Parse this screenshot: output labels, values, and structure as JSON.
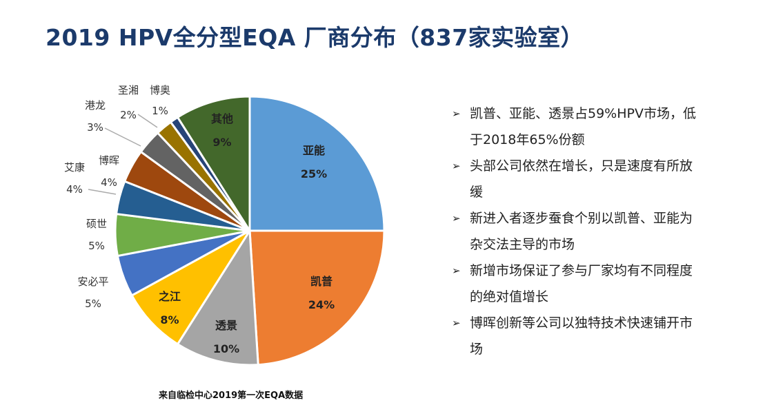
{
  "title": "2019 HPV全分型EQA 厂商分布（837家实验室）",
  "chart_data": {
    "type": "pie",
    "title": "",
    "start": "top",
    "direction": "clockwise",
    "slices": [
      {
        "label": "亚能",
        "value": 25,
        "display": "25%",
        "color": "#5b9bd5"
      },
      {
        "label": "凯普",
        "value": 24,
        "display": "24%",
        "color": "#ed7d31"
      },
      {
        "label": "透景",
        "value": 10,
        "display": "10%",
        "color": "#a5a5a5"
      },
      {
        "label": "之江",
        "value": 8,
        "display": "8%",
        "color": "#ffc000"
      },
      {
        "label": "安必平",
        "value": 5,
        "display": "5%",
        "color": "#4472c4"
      },
      {
        "label": "硕世",
        "value": 5,
        "display": "5%",
        "color": "#70ad47"
      },
      {
        "label": "艾康",
        "value": 4,
        "display": "4%",
        "color": "#255e91"
      },
      {
        "label": "博晖",
        "value": 4,
        "display": "4%",
        "color": "#9e480e"
      },
      {
        "label": "港龙",
        "value": 3,
        "display": "3%",
        "color": "#636363"
      },
      {
        "label": "圣湘",
        "value": 2,
        "display": "2%",
        "color": "#997300"
      },
      {
        "label": "博奥",
        "value": 1,
        "display": "1%",
        "color": "#264478"
      },
      {
        "label": "其他",
        "value": 9,
        "display": "9%",
        "color": "#43682b"
      }
    ]
  },
  "bullets": [
    {
      "text": "凯普、亚能、透景占59%HPV市场，低于2018年65%份额"
    },
    {
      "text": "头部公司依然在增长，只是速度有所放缓"
    },
    {
      "text": "新进入者逐步蚕食个别以凯普、亚能为杂交法主导的市场"
    },
    {
      "text": "新增市场保证了参与厂家均有不同程度的绝对值增长"
    },
    {
      "text": "博晖创新等公司以独特技术快速铺开市场"
    }
  ],
  "bullet_icon": "arrowhead-icon",
  "source": "来自临检中心2019第一次EQA数据"
}
